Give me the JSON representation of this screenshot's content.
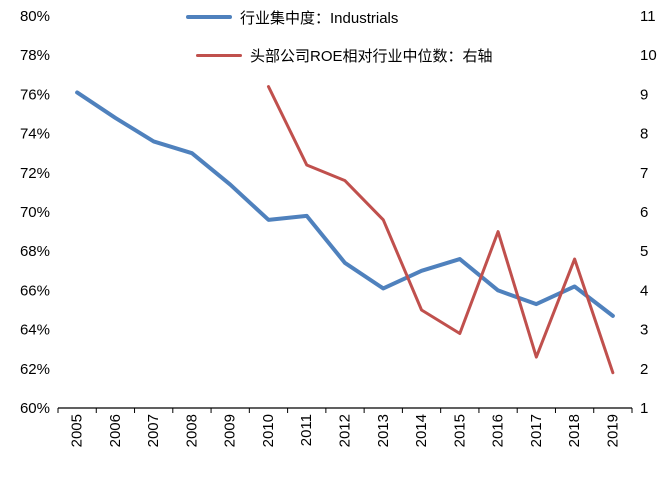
{
  "chart_data": {
    "type": "line",
    "categories": [
      "2005",
      "2006",
      "2007",
      "2008",
      "2009",
      "2010",
      "2011",
      "2012",
      "2013",
      "2014",
      "2015",
      "2016",
      "2017",
      "2018",
      "2019"
    ],
    "series": [
      {
        "name": "行业集中度：Industrials",
        "axis": "left",
        "color": "#4F81BD",
        "stroke_width": 4,
        "values": [
          76.1,
          74.8,
          73.6,
          73.0,
          71.4,
          69.6,
          69.8,
          67.4,
          66.1,
          67.0,
          67.6,
          66.0,
          65.3,
          66.2,
          64.7
        ]
      },
      {
        "name": "头部公司ROE相对行业中位数：右轴",
        "axis": "right",
        "color": "#C0504D",
        "stroke_width": 3,
        "values": [
          null,
          null,
          null,
          null,
          null,
          9.2,
          7.2,
          6.8,
          5.8,
          3.5,
          2.9,
          5.5,
          2.3,
          4.8,
          1.9
        ]
      }
    ],
    "left_axis": {
      "min": 60,
      "max": 80,
      "step": 2,
      "suffix": "%"
    },
    "right_axis": {
      "min": 1,
      "max": 11,
      "step": 1,
      "suffix": ""
    },
    "legend_position": "top",
    "grid": false,
    "axis_color": "#000000",
    "text_color": "#000000"
  }
}
